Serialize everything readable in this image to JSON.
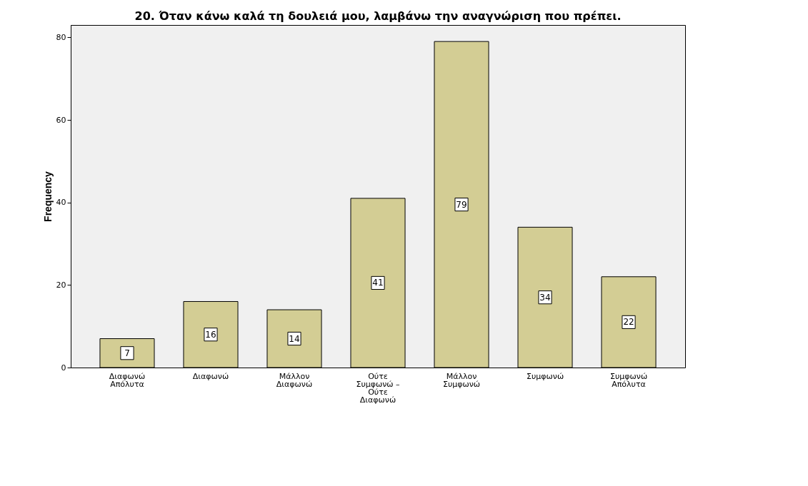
{
  "chart_data": {
    "type": "bar",
    "title": "20. Όταν κάνω καλά τη δουλειά μου, λαμβάνω την αναγνώριση που πρέπει.",
    "ylabel": "Frequency",
    "categories": [
      "Διαφωνώ Απόλυτα",
      "Διαφωνώ",
      "Μάλλον Διαφωνώ",
      "Ούτε Συμφωνώ – Ούτε Διαφωνώ",
      "Μάλλον Συμφωνώ",
      "Συμφωνώ",
      "Συμφωνώ Απόλυτα"
    ],
    "values": [
      7,
      16,
      14,
      41,
      79,
      34,
      22
    ],
    "color": "#d3cd94",
    "ylim": [
      0,
      83
    ],
    "yticks": [
      0,
      20,
      40,
      60,
      80
    ],
    "grid": false,
    "data_labels": true
  }
}
